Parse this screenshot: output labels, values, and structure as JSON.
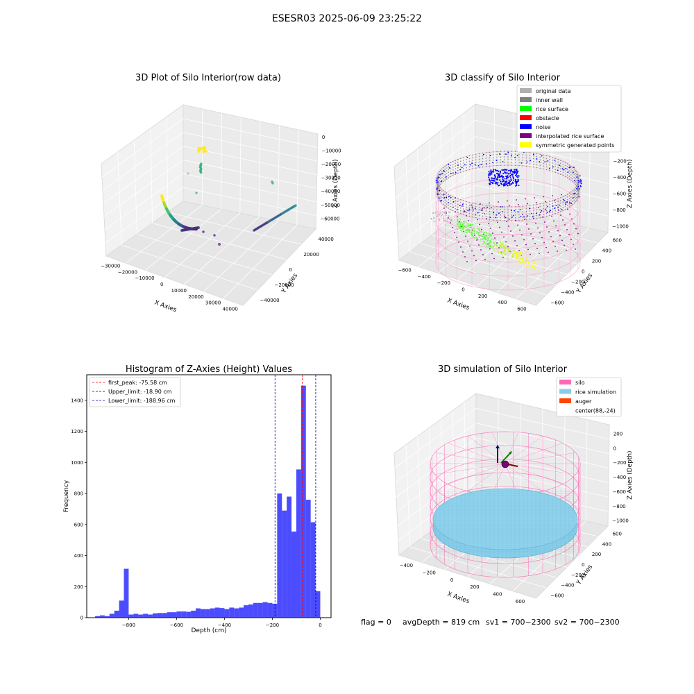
{
  "suptitle": "ESESR03 2025-06-09 23:25:22",
  "status_line": {
    "flag": "flag = 0",
    "avg_depth": "avgDepth = 819 cm",
    "sv1": "sv1 = 700~2300",
    "sv2": "sv2 = 700~2300"
  },
  "chart_data": [
    {
      "type": "scatter",
      "title": "3D Plot of Silo Interior(row data)",
      "xlabel": "X Axies",
      "ylabel": "Y Axies",
      "zlabel": "Z Axies (Depth)",
      "x_ticks": [
        "−30000",
        "−20000",
        "−10000",
        "0",
        "10000",
        "20000",
        "30000",
        "40000"
      ],
      "y_ticks": [
        "−40000",
        "−20000",
        "0",
        "20000",
        "40000"
      ],
      "z_ticks": [
        "0",
        "−10000",
        "−20000",
        "−30000",
        "−40000",
        "−50000",
        "−60000"
      ],
      "colormap": "viridis"
    },
    {
      "type": "scatter",
      "title": "3D classify of Silo Interior",
      "xlabel": "X Axies",
      "ylabel": "Y Axies",
      "zlabel": "Z Axies (Depth)",
      "x_ticks": [
        "−600",
        "−400",
        "−200",
        "0",
        "200",
        "400",
        "600"
      ],
      "y_ticks": [
        "−600",
        "−400",
        "−200",
        "0",
        "200",
        "400",
        "600"
      ],
      "z_ticks": [
        "0",
        "−200",
        "−400",
        "−600",
        "−800",
        "−1000"
      ],
      "z_tick_top_partial": "00",
      "legend": [
        {
          "label": "original data",
          "color": "#b0b0b0"
        },
        {
          "label": "inner wall",
          "color": "#808080"
        },
        {
          "label": "rice surface",
          "color": "#00ff00"
        },
        {
          "label": "obstacle",
          "color": "#ff0000"
        },
        {
          "label": "noise",
          "color": "#0000ff"
        },
        {
          "label": "interpolated rice surface",
          "color": "#800080"
        },
        {
          "label": "symmetric generated points",
          "color": "#ffff00"
        }
      ]
    },
    {
      "type": "bar",
      "title": "Histogram of Z-Axies (Height) Values",
      "xlabel": "Depth (cm)",
      "ylabel": "Frequency",
      "xlim": [
        -975,
        45
      ],
      "ylim": [
        0,
        1565
      ],
      "x_ticks": [
        -800,
        -600,
        -400,
        -200,
        0
      ],
      "y_ticks": [
        0,
        200,
        400,
        600,
        800,
        1000,
        1200,
        1400
      ],
      "bar_color": "#0000ff",
      "bins": [
        {
          "x0": -940,
          "x1": -920,
          "y": 10
        },
        {
          "x0": -920,
          "x1": -900,
          "y": 15
        },
        {
          "x0": -900,
          "x1": -880,
          "y": 10
        },
        {
          "x0": -880,
          "x1": -860,
          "y": 25
        },
        {
          "x0": -860,
          "x1": -840,
          "y": 45
        },
        {
          "x0": -840,
          "x1": -820,
          "y": 110
        },
        {
          "x0": -820,
          "x1": -800,
          "y": 315
        },
        {
          "x0": -800,
          "x1": -780,
          "y": 20
        },
        {
          "x0": -780,
          "x1": -760,
          "y": 25
        },
        {
          "x0": -760,
          "x1": -740,
          "y": 20
        },
        {
          "x0": -740,
          "x1": -720,
          "y": 25
        },
        {
          "x0": -720,
          "x1": -700,
          "y": 20
        },
        {
          "x0": -700,
          "x1": -680,
          "y": 28
        },
        {
          "x0": -680,
          "x1": -660,
          "y": 30
        },
        {
          "x0": -660,
          "x1": -640,
          "y": 30
        },
        {
          "x0": -640,
          "x1": -620,
          "y": 35
        },
        {
          "x0": -620,
          "x1": -600,
          "y": 35
        },
        {
          "x0": -600,
          "x1": -580,
          "y": 40
        },
        {
          "x0": -580,
          "x1": -560,
          "y": 40
        },
        {
          "x0": -560,
          "x1": -540,
          "y": 38
        },
        {
          "x0": -540,
          "x1": -520,
          "y": 45
        },
        {
          "x0": -520,
          "x1": -500,
          "y": 60
        },
        {
          "x0": -500,
          "x1": -480,
          "y": 55
        },
        {
          "x0": -480,
          "x1": -460,
          "y": 55
        },
        {
          "x0": -460,
          "x1": -440,
          "y": 60
        },
        {
          "x0": -440,
          "x1": -420,
          "y": 65
        },
        {
          "x0": -420,
          "x1": -400,
          "y": 62
        },
        {
          "x0": -400,
          "x1": -380,
          "y": 55
        },
        {
          "x0": -380,
          "x1": -360,
          "y": 65
        },
        {
          "x0": -360,
          "x1": -340,
          "y": 60
        },
        {
          "x0": -340,
          "x1": -320,
          "y": 65
        },
        {
          "x0": -320,
          "x1": -300,
          "y": 80
        },
        {
          "x0": -300,
          "x1": -280,
          "y": 85
        },
        {
          "x0": -280,
          "x1": -260,
          "y": 95
        },
        {
          "x0": -260,
          "x1": -240,
          "y": 95
        },
        {
          "x0": -240,
          "x1": -220,
          "y": 100
        },
        {
          "x0": -220,
          "x1": -200,
          "y": 95
        },
        {
          "x0": -200,
          "x1": -180,
          "y": 90
        },
        {
          "x0": -180,
          "x1": -160,
          "y": 800
        },
        {
          "x0": -160,
          "x1": -140,
          "y": 690
        },
        {
          "x0": -140,
          "x1": -120,
          "y": 780
        },
        {
          "x0": -120,
          "x1": -100,
          "y": 555
        },
        {
          "x0": -100,
          "x1": -80,
          "y": 955
        },
        {
          "x0": -80,
          "x1": -60,
          "y": 1495
        },
        {
          "x0": -60,
          "x1": -40,
          "y": 760
        },
        {
          "x0": -40,
          "x1": -20,
          "y": 615
        },
        {
          "x0": -20,
          "x1": 0,
          "y": 170
        }
      ],
      "lines": [
        {
          "label": "first_peak: -75.58 cm",
          "x": -75.58,
          "color": "#ff0000"
        },
        {
          "label": "Upper_limit: -18.90 cm",
          "x": -18.9,
          "color": "#000080"
        },
        {
          "label": "Lower_limit: -188.96 cm",
          "x": -188.96,
          "color": "#0000cd"
        }
      ],
      "legend_position": "upper left"
    },
    {
      "type": "scatter",
      "title": "3D simulation of Silo Interior",
      "xlabel": "X Axies",
      "ylabel": "Y Axies",
      "zlabel": "Z Axies (Depth)",
      "x_ticks": [
        "−400",
        "−200",
        "0",
        "200",
        "400",
        "600"
      ],
      "y_ticks": [
        "−600",
        "−400",
        "−200",
        "0",
        "200",
        "400",
        "600"
      ],
      "z_ticks": [
        "200",
        "0",
        "−200",
        "−400",
        "−600",
        "−800",
        "−1000"
      ],
      "legend": [
        {
          "label": "silo",
          "color": "#ff69b4"
        },
        {
          "label": "rice simulation",
          "color": "#87ceeb"
        },
        {
          "label": "auger",
          "color": "#ff4500"
        },
        {
          "label": "center(88,-24)",
          "color": "none"
        }
      ]
    }
  ]
}
